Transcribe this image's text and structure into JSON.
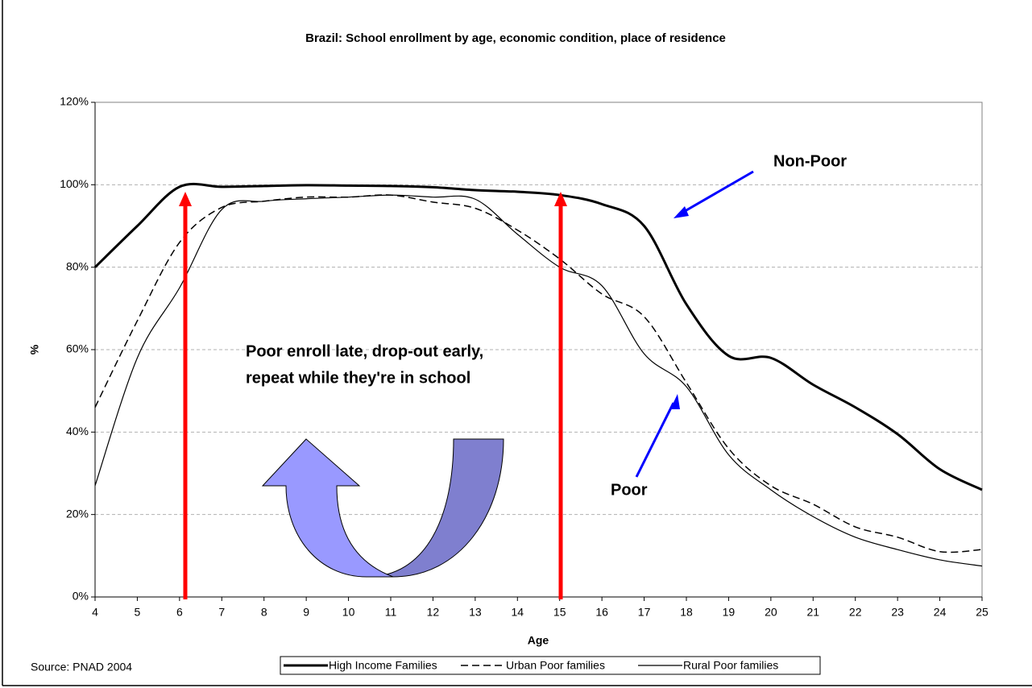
{
  "chart_data": {
    "type": "line",
    "title": "Brazil: School enrollment by age, economic condition, place of residence",
    "x_label": "Age",
    "y_label": "%",
    "source": "Source: PNAD 2004",
    "annotations": [
      "Non-Poor",
      "Poor",
      "Poor enroll late, drop-out early,",
      "repeat while they're in school"
    ],
    "x": [
      4,
      5,
      6,
      7,
      8,
      9,
      10,
      11,
      12,
      13,
      14,
      15,
      16,
      17,
      18,
      19,
      20,
      21,
      22,
      23,
      24,
      25
    ],
    "xlim": [
      4,
      25
    ],
    "xticks": [
      4,
      5,
      6,
      7,
      8,
      9,
      10,
      11,
      12,
      13,
      14,
      15,
      16,
      17,
      18,
      19,
      20,
      21,
      22,
      23,
      24,
      25
    ],
    "ylim": [
      0,
      120
    ],
    "yticks": [
      {
        "value": 0,
        "label": "0%"
      },
      {
        "value": 20,
        "label": "20%"
      },
      {
        "value": 40,
        "label": "40%"
      },
      {
        "value": 60,
        "label": "60%"
      },
      {
        "value": 80,
        "label": "80%"
      },
      {
        "value": 100,
        "label": "100%"
      },
      {
        "value": 120,
        "label": "120%"
      }
    ],
    "grid": true,
    "legend": "bottom",
    "series": [
      {
        "name": "High Income Families",
        "color": "#000000",
        "style": "solid",
        "width": 3,
        "values": [
          80,
          90,
          99.5,
          99.5,
          99.7,
          99.9,
          99.8,
          99.7,
          99.4,
          98.7,
          98.3,
          97.5,
          95.3,
          90,
          71,
          58.5,
          58,
          51.5,
          46,
          39.5,
          31,
          26
        ]
      },
      {
        "name": "Urban Poor families",
        "color": "#000000",
        "style": "dashed",
        "width": 1.5,
        "values": [
          46,
          67,
          86,
          94.5,
          96,
          97,
          97,
          97.5,
          95.8,
          94.3,
          89,
          82,
          73.5,
          68,
          52,
          36,
          27,
          22.5,
          17,
          14.5,
          11,
          11.5
        ]
      },
      {
        "name": "Rural Poor families",
        "color": "#000000",
        "style": "solid",
        "width": 1.2,
        "values": [
          27,
          58,
          75,
          94,
          96,
          96.6,
          97,
          97.5,
          97,
          96.5,
          88,
          80,
          75.5,
          59,
          51,
          34.5,
          26,
          19.5,
          14.5,
          11.5,
          9,
          7.5
        ]
      }
    ]
  }
}
